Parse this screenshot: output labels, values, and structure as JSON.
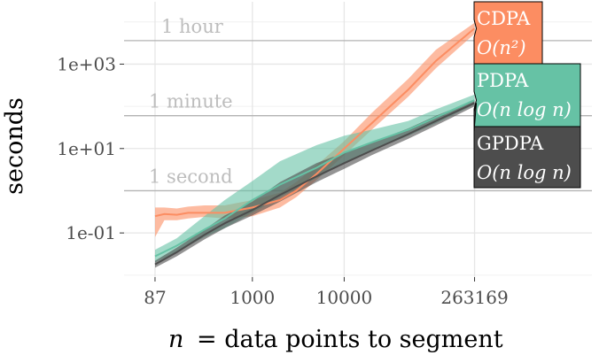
{
  "chart_data": {
    "type": "line",
    "xlabel": "n = data points to segment",
    "ylabel": "seconds",
    "x_scale": "log",
    "y_scale": "log",
    "xlim": [
      40,
      5000000
    ],
    "ylim": [
      0.009,
      30000
    ],
    "x_ticks": [
      87,
      1000,
      10000,
      263169
    ],
    "x_tick_labels": [
      "87",
      "1000",
      "10000",
      "263169"
    ],
    "y_ticks": [
      0.1,
      10,
      1000
    ],
    "y_tick_labels": [
      "1e-01",
      "1e+01",
      "1e+03"
    ],
    "grid": true,
    "reference_lines": [
      {
        "label": "1 second",
        "value": 1
      },
      {
        "label": "1 minute",
        "value": 60
      },
      {
        "label": "1 hour",
        "value": 3600
      }
    ],
    "series": [
      {
        "name": "CDPA",
        "complexity": "O(n²)",
        "color": "#fc8d62",
        "x": [
          87,
          110,
          150,
          200,
          300,
          500,
          1000,
          2000,
          3000,
          5000,
          10000,
          20000,
          50000,
          100000,
          263169
        ],
        "y": [
          0.25,
          0.28,
          0.27,
          0.3,
          0.3,
          0.3,
          0.4,
          0.6,
          1.0,
          2.5,
          10,
          40,
          250,
          1200,
          7000
        ],
        "lower": [
          0.08,
          0.2,
          0.2,
          0.22,
          0.24,
          0.22,
          0.25,
          0.4,
          0.7,
          1.8,
          7,
          28,
          170,
          800,
          5200
        ],
        "upper": [
          0.4,
          0.4,
          0.38,
          0.42,
          0.45,
          0.45,
          0.6,
          0.9,
          1.6,
          4,
          15,
          70,
          450,
          2200,
          9500
        ]
      },
      {
        "name": "PDPA",
        "complexity": "O(n log n)",
        "color": "#66c2a5",
        "x": [
          87,
          150,
          300,
          500,
          1000,
          2000,
          5000,
          10000,
          20000,
          50000,
          100000,
          263169
        ],
        "y": [
          0.028,
          0.05,
          0.12,
          0.22,
          0.6,
          1.4,
          3.5,
          8,
          14,
          28,
          55,
          140
        ],
        "lower": [
          0.02,
          0.035,
          0.08,
          0.13,
          0.3,
          0.7,
          2.0,
          4.5,
          9,
          20,
          40,
          110
        ],
        "upper": [
          0.04,
          0.075,
          0.25,
          0.6,
          1.7,
          5,
          12,
          20,
          28,
          45,
          85,
          190
        ]
      },
      {
        "name": "GPDPA",
        "complexity": "O(n log n)",
        "color": "#4d4d4d",
        "x": [
          87,
          150,
          300,
          500,
          1000,
          2000,
          5000,
          10000,
          20000,
          50000,
          100000,
          263169
        ],
        "y": [
          0.018,
          0.035,
          0.09,
          0.17,
          0.35,
          0.8,
          2.2,
          4.5,
          9,
          22,
          45,
          120
        ],
        "lower": [
          0.015,
          0.028,
          0.07,
          0.13,
          0.26,
          0.55,
          1.6,
          3.3,
          7,
          17,
          35,
          100
        ],
        "upper": [
          0.022,
          0.045,
          0.12,
          0.26,
          0.55,
          1.6,
          4.5,
          8,
          14,
          30,
          60,
          140
        ]
      }
    ]
  }
}
